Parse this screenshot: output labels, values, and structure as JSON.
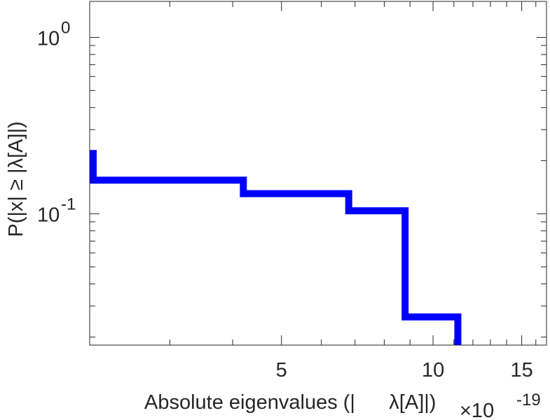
{
  "chart_data": {
    "type": "line",
    "step": true,
    "xscale": "log",
    "yscale": "log",
    "xlim": [
      2.08e-19,
      1.68e-18
    ],
    "ylim": [
      0.018,
      1.6
    ],
    "x_ticks": [
      {
        "value": 5e-19,
        "label": "5"
      },
      {
        "value": 1e-18,
        "label": "10"
      },
      {
        "value": 1.5e-18,
        "label": "15"
      }
    ],
    "x_multiplier": {
      "base": "×10",
      "exp": "-19"
    },
    "y_ticks": [
      {
        "value": 1,
        "base": "10",
        "exp": "0"
      },
      {
        "value": 0.1,
        "base": "10",
        "exp": "-1"
      }
    ],
    "xlabel": "Absolute eigenvalues (|      λ[A]|)",
    "ylabel": "P(|x| ≥ |λ[A]|)",
    "grid": false,
    "line_color": "#0000ff",
    "series": [
      {
        "x": [
          2.08e-19,
          2.08e-19,
          4.2e-19,
          4.2e-19,
          6.8e-19,
          6.8e-19,
          8.8e-19,
          8.8e-19,
          1.12e-18,
          1.12e-18
        ],
        "y": [
          0.23,
          0.155,
          0.155,
          0.13,
          0.13,
          0.104,
          0.104,
          0.026,
          0.026,
          0.018
        ]
      }
    ]
  }
}
